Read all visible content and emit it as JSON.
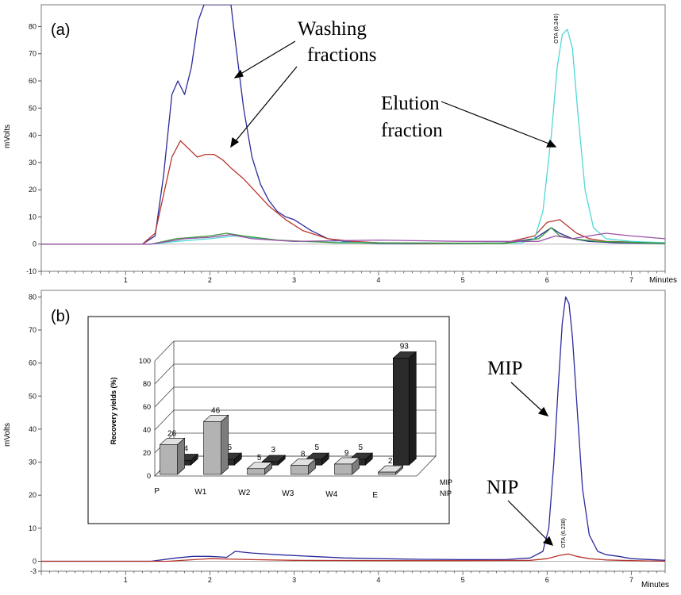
{
  "chart_data": [
    {
      "type": "line",
      "panel_label": "(a)",
      "xlabel": "Minutes",
      "ylabel": "mVolts",
      "xlim": [
        0,
        7.4
      ],
      "ylim": [
        -10,
        88
      ],
      "xticks": [
        1,
        2,
        3,
        4,
        5,
        6,
        7
      ],
      "yticks": [
        -10,
        0,
        10,
        20,
        30,
        40,
        50,
        60,
        70,
        80
      ],
      "peak_label": "OTA (6.240)",
      "annotations": [
        {
          "text": "Washing",
          "line": 1
        },
        {
          "text": "fractions",
          "line": 2
        },
        {
          "text": "Elution",
          "line": 1
        },
        {
          "text": "fraction",
          "line": 2
        }
      ],
      "series": [
        {
          "color": "#2b2b9c",
          "x": [
            0,
            1.2,
            1.35,
            1.45,
            1.55,
            1.62,
            1.7,
            1.78,
            1.86,
            1.93,
            2.0,
            2.05,
            2.1,
            2.18,
            2.25,
            2.3,
            2.4,
            2.5,
            2.6,
            2.7,
            2.8,
            2.9,
            3.0,
            3.2,
            3.4,
            3.6,
            3.8,
            4.0,
            4.5,
            5.0,
            5.5,
            5.85,
            6.05,
            6.15,
            6.3,
            6.5,
            6.8,
            7.4
          ],
          "y": [
            0,
            0,
            3,
            25,
            55,
            60,
            55,
            65,
            82,
            88,
            88,
            88,
            88,
            88,
            88,
            75,
            50,
            32,
            22,
            16,
            12,
            10,
            9,
            5,
            2,
            1,
            0.5,
            0.3,
            0.2,
            0.2,
            0.5,
            2,
            6,
            4,
            2,
            1,
            0.5,
            0.3
          ]
        },
        {
          "color": "#b8352b",
          "x": [
            0,
            1.2,
            1.35,
            1.45,
            1.55,
            1.65,
            1.75,
            1.85,
            1.95,
            2.05,
            2.15,
            2.25,
            2.4,
            2.55,
            2.7,
            2.9,
            3.1,
            3.4,
            3.7,
            4.0,
            4.5,
            5.0,
            5.5,
            5.85,
            6.0,
            6.15,
            6.35,
            6.5,
            6.7,
            7.4
          ],
          "y": [
            0,
            0,
            4,
            18,
            32,
            38,
            35,
            32,
            33,
            33,
            31,
            28,
            24,
            19,
            14,
            9,
            5,
            2,
            1,
            0.5,
            0.3,
            0.2,
            0.5,
            3,
            8,
            9,
            4,
            2,
            1,
            0.5
          ]
        },
        {
          "color": "#4fd7d7",
          "x": [
            0,
            1.3,
            1.6,
            2.0,
            2.3,
            2.6,
            3.0,
            4.0,
            5.0,
            5.7,
            5.85,
            5.95,
            6.05,
            6.12,
            6.18,
            6.24,
            6.3,
            6.36,
            6.45,
            6.55,
            6.7,
            7.0,
            7.4
          ],
          "y": [
            0,
            0,
            1,
            2,
            3,
            2,
            1,
            0.5,
            0.3,
            0.5,
            2,
            12,
            40,
            65,
            77,
            79,
            72,
            50,
            20,
            6,
            2,
            1,
            0.5
          ]
        },
        {
          "color": "#3a9a3a",
          "x": [
            0,
            1.3,
            1.6,
            2.0,
            2.2,
            2.4,
            2.8,
            3.5,
            5.5,
            5.9,
            6.05,
            6.15,
            6.3,
            6.6,
            7.4
          ],
          "y": [
            0,
            0,
            2,
            3,
            4,
            3,
            1.5,
            0.5,
            0.3,
            2,
            6,
            3,
            2,
            1,
            0.3
          ]
        },
        {
          "color": "#9b4fa8",
          "x": [
            0,
            1.3,
            1.7,
            2.0,
            2.25,
            2.5,
            3.0,
            4.0,
            5.0,
            5.9,
            6.1,
            6.3,
            6.5,
            6.7,
            7.0,
            7.4
          ],
          "y": [
            0,
            0,
            2,
            2.5,
            3.5,
            2,
            1,
            1.5,
            1,
            1,
            3,
            2,
            3,
            4,
            3,
            2
          ]
        }
      ]
    },
    {
      "type": "line",
      "panel_label": "(b)",
      "xlabel": "Minutes",
      "ylabel": "mVolts",
      "xlim": [
        0,
        7.4
      ],
      "ylim": [
        -3,
        82
      ],
      "xticks": [
        1,
        2,
        3,
        4,
        5,
        6,
        7
      ],
      "yticks": [
        -3,
        0,
        10,
        20,
        30,
        40,
        50,
        60,
        70,
        80
      ],
      "peak_label": "OTA (6.238)",
      "annotations": [
        {
          "text": "MIP"
        },
        {
          "text": "NIP"
        }
      ],
      "series": [
        {
          "name": "MIP",
          "color": "#2b2b9c",
          "x": [
            0,
            1.3,
            1.6,
            1.8,
            2.0,
            2.2,
            2.3,
            2.5,
            2.8,
            3.2,
            3.6,
            4.0,
            4.5,
            5.0,
            5.5,
            5.8,
            5.95,
            6.02,
            6.08,
            6.13,
            6.18,
            6.22,
            6.26,
            6.3,
            6.36,
            6.42,
            6.5,
            6.6,
            6.7,
            6.85,
            7.0,
            7.4
          ],
          "y": [
            0,
            0,
            1,
            1.5,
            1.5,
            1.2,
            3,
            2.5,
            2,
            1.5,
            1,
            0.8,
            0.6,
            0.5,
            0.5,
            1,
            3,
            10,
            30,
            52,
            72,
            80,
            78,
            68,
            45,
            22,
            8,
            3,
            2,
            1.5,
            0.8,
            0.3
          ]
        },
        {
          "name": "NIP",
          "color": "#b8352b",
          "x": [
            0,
            1.5,
            2.0,
            2.5,
            3.0,
            4.0,
            5.0,
            5.8,
            6.0,
            6.15,
            6.25,
            6.35,
            6.5,
            6.7,
            7.0,
            7.4
          ],
          "y": [
            0,
            0,
            0.8,
            0.5,
            0.3,
            0.2,
            0.2,
            0.3,
            0.8,
            1.8,
            2.2,
            1.5,
            0.8,
            0.4,
            0.2,
            0
          ]
        }
      ],
      "inset": {
        "type": "bar",
        "ylabel": "Recovery yields (%)",
        "ylim": [
          0,
          100
        ],
        "yticks": [
          0,
          20,
          40,
          60,
          80,
          100
        ],
        "categories": [
          "P",
          "W1",
          "W2",
          "W3",
          "W4",
          "E"
        ],
        "series": [
          {
            "name": "NIP",
            "color": "#b3b3b3",
            "values": [
              26,
              46,
              5,
              8,
              9,
              2
            ]
          },
          {
            "name": "MIP",
            "color": "#2a2a2a",
            "values": [
              4,
              5,
              3,
              5,
              5,
              93
            ]
          }
        ]
      }
    }
  ]
}
